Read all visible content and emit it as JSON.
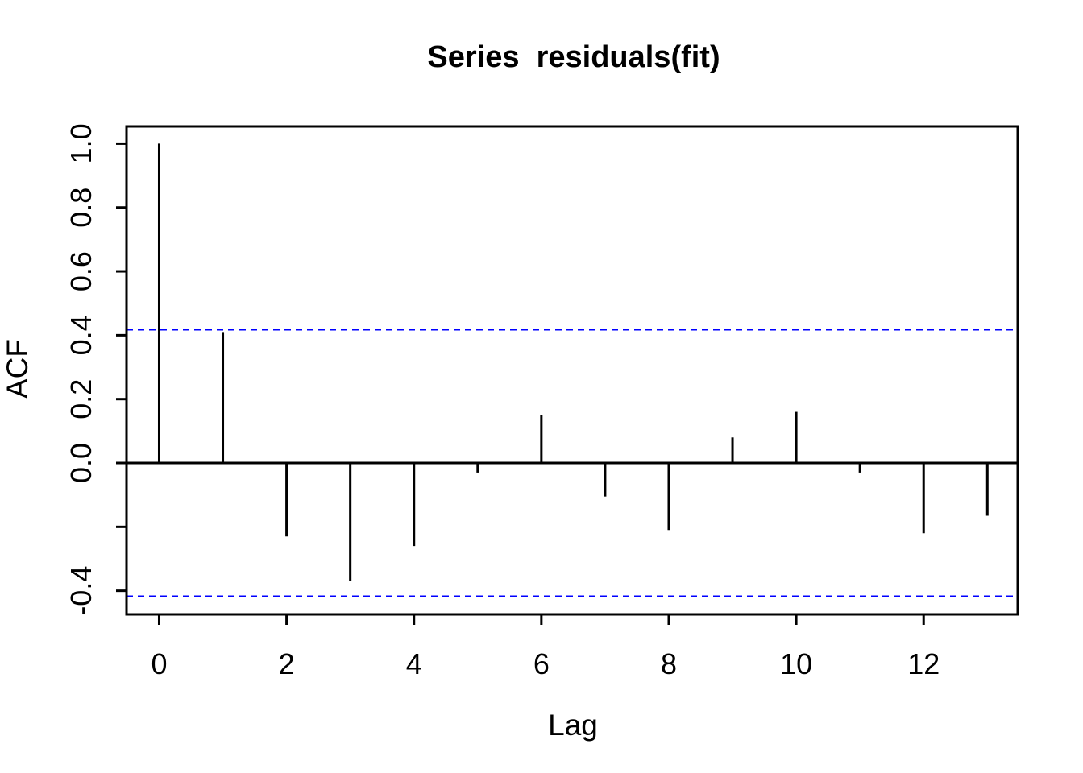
{
  "chart_data": {
    "type": "bar",
    "subtype": "acf-stick-plot",
    "title": "Series  residuals(fit)",
    "xlabel": "Lag",
    "ylabel": "ACF",
    "x": [
      0,
      1,
      2,
      3,
      4,
      5,
      6,
      7,
      8,
      9,
      10,
      11,
      12,
      13
    ],
    "values": [
      1.0,
      0.41,
      -0.23,
      -0.37,
      -0.26,
      -0.03,
      0.15,
      -0.105,
      -0.21,
      0.08,
      0.16,
      -0.03,
      -0.22,
      -0.165
    ],
    "conf_bounds": [
      0.418,
      -0.418
    ],
    "xlim": [
      -0.512,
      13.477
    ],
    "ylim": [
      -0.474,
      1.054
    ],
    "x_ticks": [
      0,
      2,
      4,
      6,
      8,
      10,
      12
    ],
    "y_ticks": [
      {
        "v": 1.0,
        "label": "1.0"
      },
      {
        "v": 0.8,
        "label": "0.8"
      },
      {
        "v": 0.6,
        "label": "0.6"
      },
      {
        "v": 0.4,
        "label": "0.4"
      },
      {
        "v": 0.2,
        "label": "0.2"
      },
      {
        "v": 0.0,
        "label": "0.0"
      },
      {
        "v": -0.2,
        "label": ""
      },
      {
        "v": -0.4,
        "label": "-0.4"
      }
    ],
    "grid": false,
    "legend": "none",
    "colors": {
      "bar": "#000000",
      "conf_line": "#0000FF",
      "box": "#000000",
      "background": "#ffffff"
    }
  }
}
